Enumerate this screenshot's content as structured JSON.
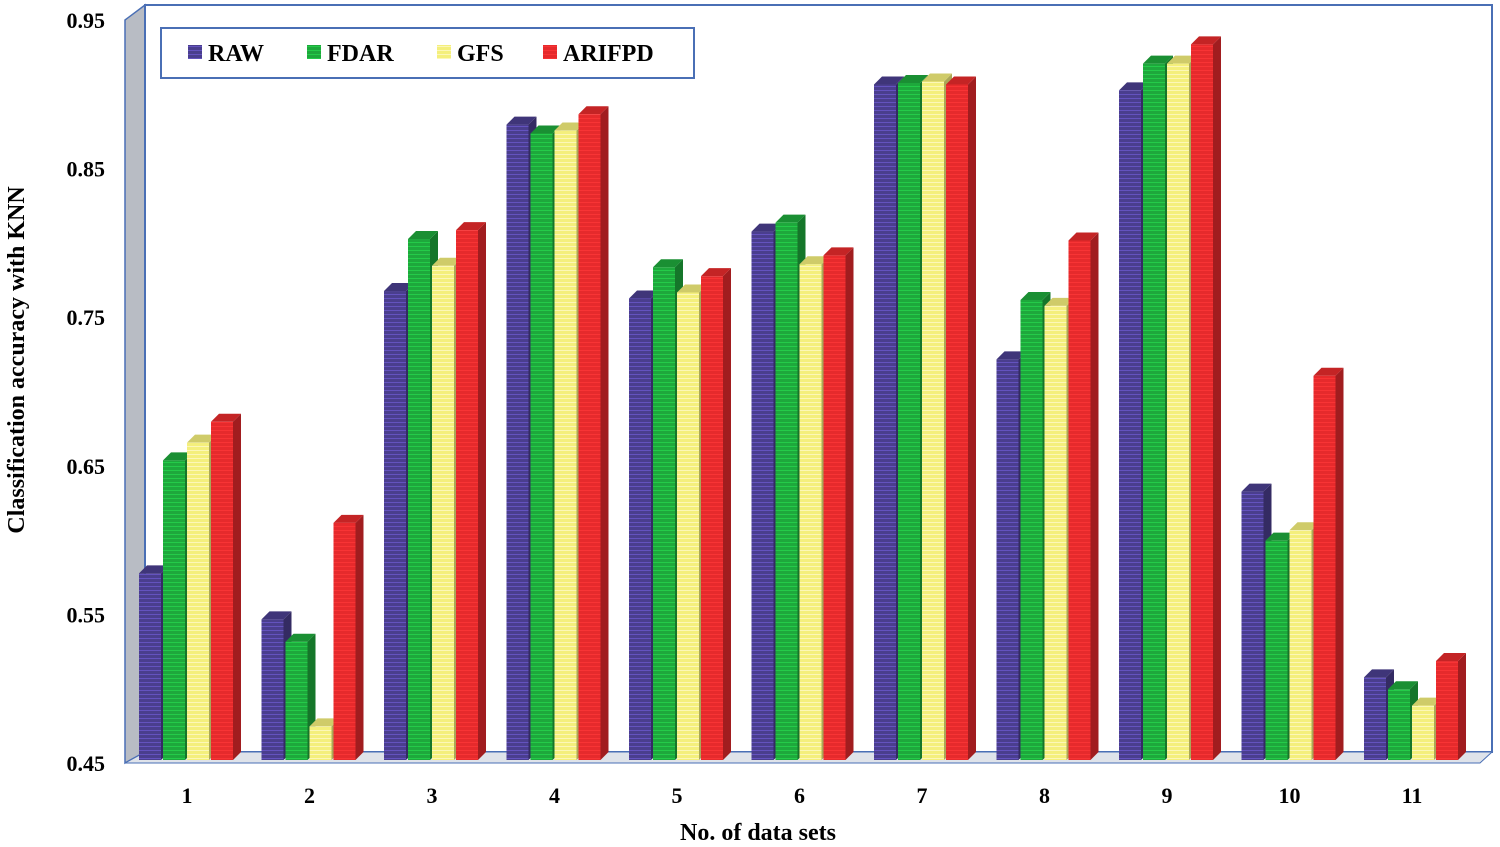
{
  "chart_data": {
    "type": "bar",
    "title": "",
    "xlabel": "No. of data sets",
    "ylabel": "Classification accuracy with KNN",
    "ylim": [
      0.45,
      0.95
    ],
    "yticks": [
      "0.45",
      "0.55",
      "0.65",
      "0.75",
      "0.85",
      "0.95"
    ],
    "ytick_values": [
      0.45,
      0.55,
      0.65,
      0.75,
      0.85,
      0.95
    ],
    "categories": [
      "1",
      "2",
      "3",
      "4",
      "5",
      "6",
      "7",
      "8",
      "9",
      "10",
      "11"
    ],
    "legend_position": "top-left",
    "grid": false,
    "series": [
      {
        "name": "RAW",
        "color": "#4a3e8e",
        "values": [
          0.583,
          0.552,
          0.773,
          0.885,
          0.768,
          0.813,
          0.912,
          0.727,
          0.908,
          0.638,
          0.513
        ]
      },
      {
        "name": "FDAR",
        "color": "#1ea83c",
        "values": [
          0.659,
          0.537,
          0.808,
          0.879,
          0.789,
          0.819,
          0.913,
          0.767,
          0.926,
          0.605,
          0.505
        ]
      },
      {
        "name": "GFS",
        "color": "#f4ef7c",
        "values": [
          0.671,
          0.48,
          0.79,
          0.881,
          0.772,
          0.791,
          0.914,
          0.763,
          0.926,
          0.612,
          0.494
        ]
      },
      {
        "name": "ARIFPD",
        "color": "#e62a2c",
        "values": [
          0.685,
          0.617,
          0.814,
          0.892,
          0.783,
          0.797,
          0.912,
          0.807,
          0.939,
          0.716,
          0.524
        ]
      }
    ]
  }
}
